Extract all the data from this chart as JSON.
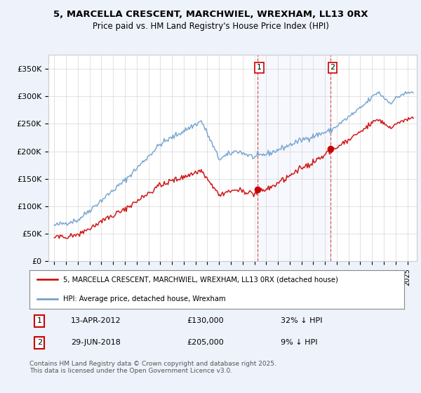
{
  "title1": "5, MARCELLA CRESCENT, MARCHWIEL, WREXHAM, LL13 0RX",
  "title2": "Price paid vs. HM Land Registry's House Price Index (HPI)",
  "legend_label_red": "5, MARCELLA CRESCENT, MARCHWIEL, WREXHAM, LL13 0RX (detached house)",
  "legend_label_blue": "HPI: Average price, detached house, Wrexham",
  "annotation1_label": "1",
  "annotation1_date": "13-APR-2012",
  "annotation1_price": "£130,000",
  "annotation1_hpi": "32% ↓ HPI",
  "annotation2_label": "2",
  "annotation2_date": "29-JUN-2018",
  "annotation2_price": "£205,000",
  "annotation2_hpi": "9% ↓ HPI",
  "footer": "Contains HM Land Registry data © Crown copyright and database right 2025.\nThis data is licensed under the Open Government Licence v3.0.",
  "sale1_year": 2012.28,
  "sale1_price": 130000,
  "sale2_year": 2018.49,
  "sale2_price": 205000,
  "ylim": [
    0,
    375000
  ],
  "yticks": [
    0,
    50000,
    100000,
    150000,
    200000,
    250000,
    300000,
    350000
  ],
  "ytick_labels": [
    "£0",
    "£50K",
    "£100K",
    "£150K",
    "£200K",
    "£250K",
    "£300K",
    "£350K"
  ],
  "red_color": "#cc0000",
  "blue_color": "#6699cc",
  "background_color": "#eef2fa",
  "plot_bg": "#ffffff",
  "vline_color": "#cc4444",
  "grid_color": "#cccccc",
  "ann_box_color": "#cc0000"
}
